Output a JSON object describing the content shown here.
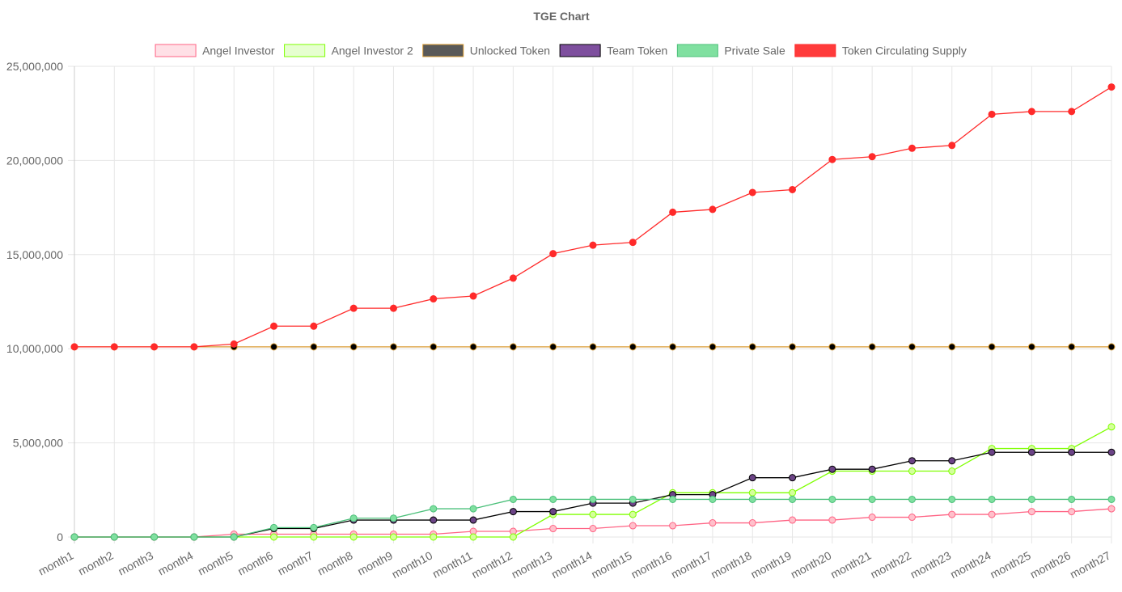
{
  "chart_data": {
    "type": "line",
    "title": "TGE Chart",
    "xlabel": "",
    "ylabel": "",
    "ylim": [
      0,
      25000000
    ],
    "yticks": [
      0,
      5000000,
      10000000,
      15000000,
      20000000,
      25000000
    ],
    "ytick_labels": [
      "0",
      "5,000,000",
      "10,000,000",
      "15,000,000",
      "20,000,000",
      "25,000,000"
    ],
    "grid": true,
    "legend_position": "top",
    "categories": [
      "month1",
      "month2",
      "month3",
      "month4",
      "month5",
      "month6",
      "month7",
      "month8",
      "month9",
      "month10",
      "month11",
      "month12",
      "month13",
      "month14",
      "month15",
      "month16",
      "month17",
      "month18",
      "month19",
      "month20",
      "month21",
      "month22",
      "month23",
      "month24",
      "month25",
      "month26",
      "month27"
    ],
    "series": [
      {
        "name": "Angel Investor",
        "border_color": "#ff6384",
        "fill_color": "#ffe0e6",
        "point_fill": "#ffc0cb",
        "values": [
          0,
          0,
          0,
          0,
          150000,
          150000,
          150000,
          150000,
          150000,
          150000,
          300000,
          300000,
          450000,
          450000,
          600000,
          600000,
          750000,
          750000,
          900000,
          900000,
          1050000,
          1050000,
          1200000,
          1200000,
          1350000,
          1350000,
          1500000
        ]
      },
      {
        "name": "Angel Investor 2",
        "border_color": "#7fff00",
        "fill_color": "#e6ffd0",
        "point_fill": "#d4ff9a",
        "values": [
          0,
          0,
          0,
          0,
          0,
          0,
          0,
          0,
          0,
          0,
          0,
          0,
          1200000,
          1200000,
          1200000,
          2350000,
          2350000,
          2350000,
          2350000,
          3500000,
          3500000,
          3500000,
          3500000,
          4700000,
          4700000,
          4700000,
          5850000
        ]
      },
      {
        "name": "Unlocked Token",
        "border_color": "#d89a30",
        "fill_color": "#595959",
        "point_fill": "#000000",
        "values": [
          10100000,
          10100000,
          10100000,
          10100000,
          10100000,
          10100000,
          10100000,
          10100000,
          10100000,
          10100000,
          10100000,
          10100000,
          10100000,
          10100000,
          10100000,
          10100000,
          10100000,
          10100000,
          10100000,
          10100000,
          10100000,
          10100000,
          10100000,
          10100000,
          10100000,
          10100000,
          10100000
        ]
      },
      {
        "name": "Team Token",
        "border_color": "#000000",
        "fill_color": "#7e4f9e",
        "point_fill": "#6b4386",
        "values": [
          0,
          0,
          0,
          0,
          0,
          450000,
          450000,
          900000,
          900000,
          900000,
          900000,
          1350000,
          1350000,
          1800000,
          1800000,
          2250000,
          2250000,
          3150000,
          3150000,
          3600000,
          3600000,
          4050000,
          4050000,
          4500000,
          4500000,
          4500000,
          4500000
        ]
      },
      {
        "name": "Private Sale",
        "border_color": "#4bc07a",
        "fill_color": "#80e0a0",
        "point_fill": "#80e0a0",
        "values": [
          0,
          0,
          0,
          0,
          0,
          500000,
          500000,
          1000000,
          1000000,
          1500000,
          1500000,
          2000000,
          2000000,
          2000000,
          2000000,
          2000000,
          2000000,
          2000000,
          2000000,
          2000000,
          2000000,
          2000000,
          2000000,
          2000000,
          2000000,
          2000000,
          2000000
        ]
      },
      {
        "name": "Token Circulating Supply",
        "border_color": "#ff2a2a",
        "fill_color": "#ff3b3b",
        "point_fill": "#ff2a2a",
        "values": [
          10100000,
          10100000,
          10100000,
          10100000,
          10250000,
          11200000,
          11200000,
          12150000,
          12150000,
          12650000,
          12800000,
          13750000,
          15050000,
          15500000,
          15650000,
          17250000,
          17400000,
          18300000,
          18450000,
          20050000,
          20200000,
          20650000,
          20800000,
          22450000,
          22600000,
          22600000,
          23900000
        ]
      }
    ]
  },
  "colors": {
    "grid": "#e6e6e6",
    "axis_text": "#666666",
    "title_text": "#666666",
    "legend_text": "#666666"
  }
}
